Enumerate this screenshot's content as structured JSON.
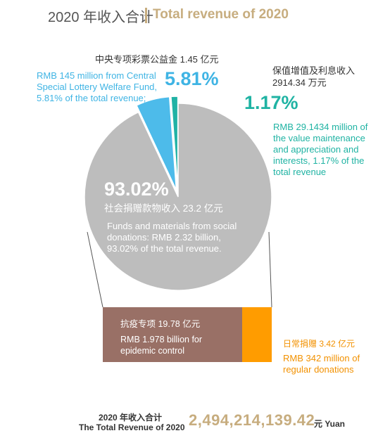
{
  "header": {
    "title_cn": "2020 年收入合计",
    "title_en": "Total revenue of 2020"
  },
  "chart_data": {
    "type": "pie",
    "total_value": 100,
    "slices": [
      {
        "key": "social",
        "value": 93.02,
        "color": "#bdbdbd",
        "percent_label": "93.02%",
        "label_cn": "社会捐赠款物收入 23.2 亿元",
        "label_en": "Funds and materials from social donations: RMB 2.32 billion, 93.02% of the total revenue."
      },
      {
        "key": "lottery",
        "value": 5.81,
        "color": "#4dbbea",
        "percent_label": "5.81%",
        "label_cn": "中央专项彩票公益金 1.45 亿元",
        "label_en": "RMB 145 million from Central Special Lottery Welfare Fund, 5.81% of the total revenue;"
      },
      {
        "key": "interest",
        "value": 1.17,
        "color": "#20b2a5",
        "percent_label": "1.17%",
        "label_cn_line1": "保值增值及利息收入",
        "label_cn_line2": "2914.34 万元",
        "label_en": "RMB 29.1434 million of the value maintenance and appreciation and interests, 1.17% of the total revenue"
      }
    ],
    "breakdown_of": "social",
    "breakdown": [
      {
        "key": "epidemic",
        "value": 19.78,
        "color": "#997066",
        "label_cn": "抗疫专项 19.78 亿元",
        "label_en": "RMB 1.978 billion for epidemic control"
      },
      {
        "key": "regular",
        "value": 3.42,
        "color": "#ff9c00",
        "label_cn": "日常捐赠 3.42 亿元",
        "label_en": "RMB 342 million of regular donations"
      }
    ]
  },
  "footer": {
    "total_label_cn": "2020 年收入合计",
    "total_label_en": "The Total Revenue of 2020",
    "total_value": "2,494,214,139.42",
    "total_unit": "元 Yuan"
  }
}
